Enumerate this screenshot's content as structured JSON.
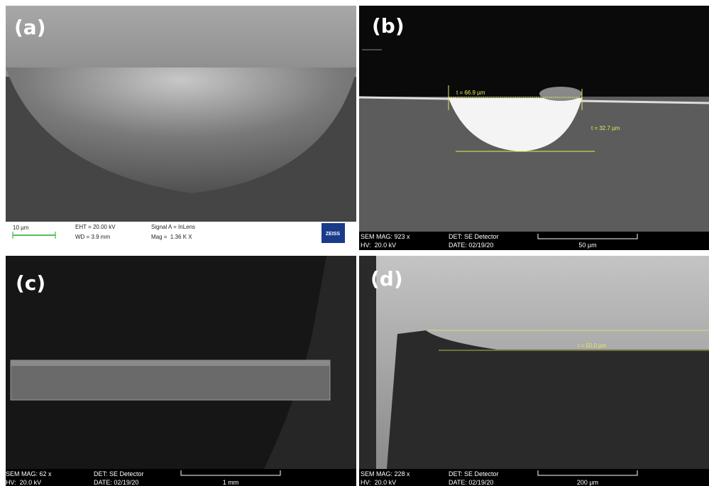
{
  "panels": [
    {
      "label": "(a)",
      "scale_bar": "10 µm",
      "info": [
        "EHT = 20.00 kV",
        "WD = 3.9 mm",
        "Signal A = InLens",
        "Mag =  1.36 K X"
      ],
      "logo": "ZEISS"
    },
    {
      "label": "(b)",
      "annotations": [
        "t = 66.9 µm",
        "t = 32.7 µm"
      ],
      "info": [
        "SEM MAG: 923 x",
        "HV:  20.0 kV",
        "DET: SE Detector",
        "DATE: 02/19/20"
      ],
      "scale_bar": "50 µm"
    },
    {
      "label": "(c)",
      "info": [
        "SEM MAG: 62 x",
        "HV:  20.0 kV",
        "DET: SE Detector",
        "DATE: 02/19/20"
      ],
      "scale_bar": "1 mm"
    },
    {
      "label": "(d)",
      "annotations": [
        "t = 50.0 µm"
      ],
      "info": [
        "SEM MAG: 228 x",
        "HV:  20.0 kV",
        "DET: SE Detector",
        "DATE: 02/19/20"
      ],
      "scale_bar": "200 µm"
    }
  ]
}
